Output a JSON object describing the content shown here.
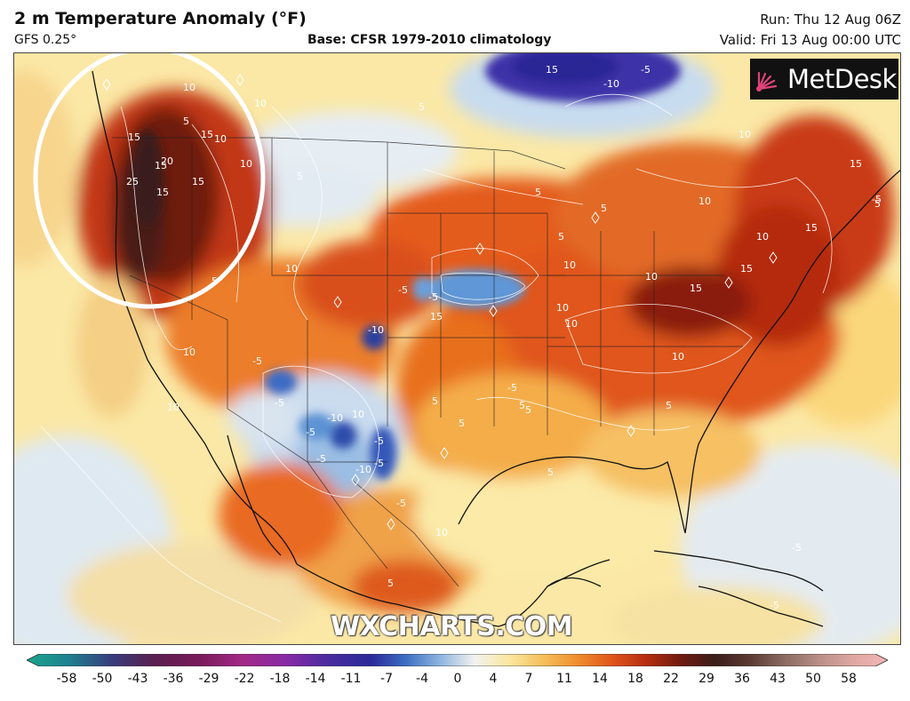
{
  "header": {
    "title": "2 m Temperature Anomaly (°F)",
    "subtitle": "GFS 0.25°",
    "base": "Base: CFSR 1979-2010 climatology",
    "run": "Run: Thu 12 Aug 06Z",
    "valid": "Valid: Fri 13 Aug 00:00 UTC"
  },
  "logo": {
    "text": "MetDesk",
    "icon": "sunburst-logo-icon"
  },
  "watermark": "WXCHARTS.COM",
  "legend": {
    "ticks": [
      "-58",
      "-50",
      "-43",
      "-36",
      "-29",
      "-22",
      "-18",
      "-14",
      "-11",
      "-7",
      "-4",
      "0",
      "4",
      "7",
      "11",
      "14",
      "18",
      "22",
      "29",
      "36",
      "43",
      "50",
      "58"
    ]
  },
  "contour_labels": [
    "15",
    "-10",
    "-5",
    "10",
    "15",
    "5",
    "10",
    "5",
    "15",
    "20",
    "25",
    "15",
    "15",
    "10",
    "15",
    "10",
    "5",
    "10",
    "15",
    "15",
    "10",
    "15",
    "5",
    "-5",
    "-10",
    "-5",
    "10",
    "-5",
    "10",
    "5",
    "10",
    "15",
    "5",
    "-5",
    "5",
    "5",
    "-5",
    "10",
    "-10",
    "10",
    "5",
    "-5",
    "5",
    "10",
    "15",
    "10",
    "5",
    "-5",
    "-5",
    "-10",
    "10",
    "-5",
    "10",
    "-5",
    "-5",
    "-5",
    "5",
    "5",
    "10",
    "5",
    "5",
    "10",
    "-5"
  ],
  "annotation": {
    "shape": "circle",
    "color": "#ffffff",
    "region": "US Pacific Northwest"
  }
}
